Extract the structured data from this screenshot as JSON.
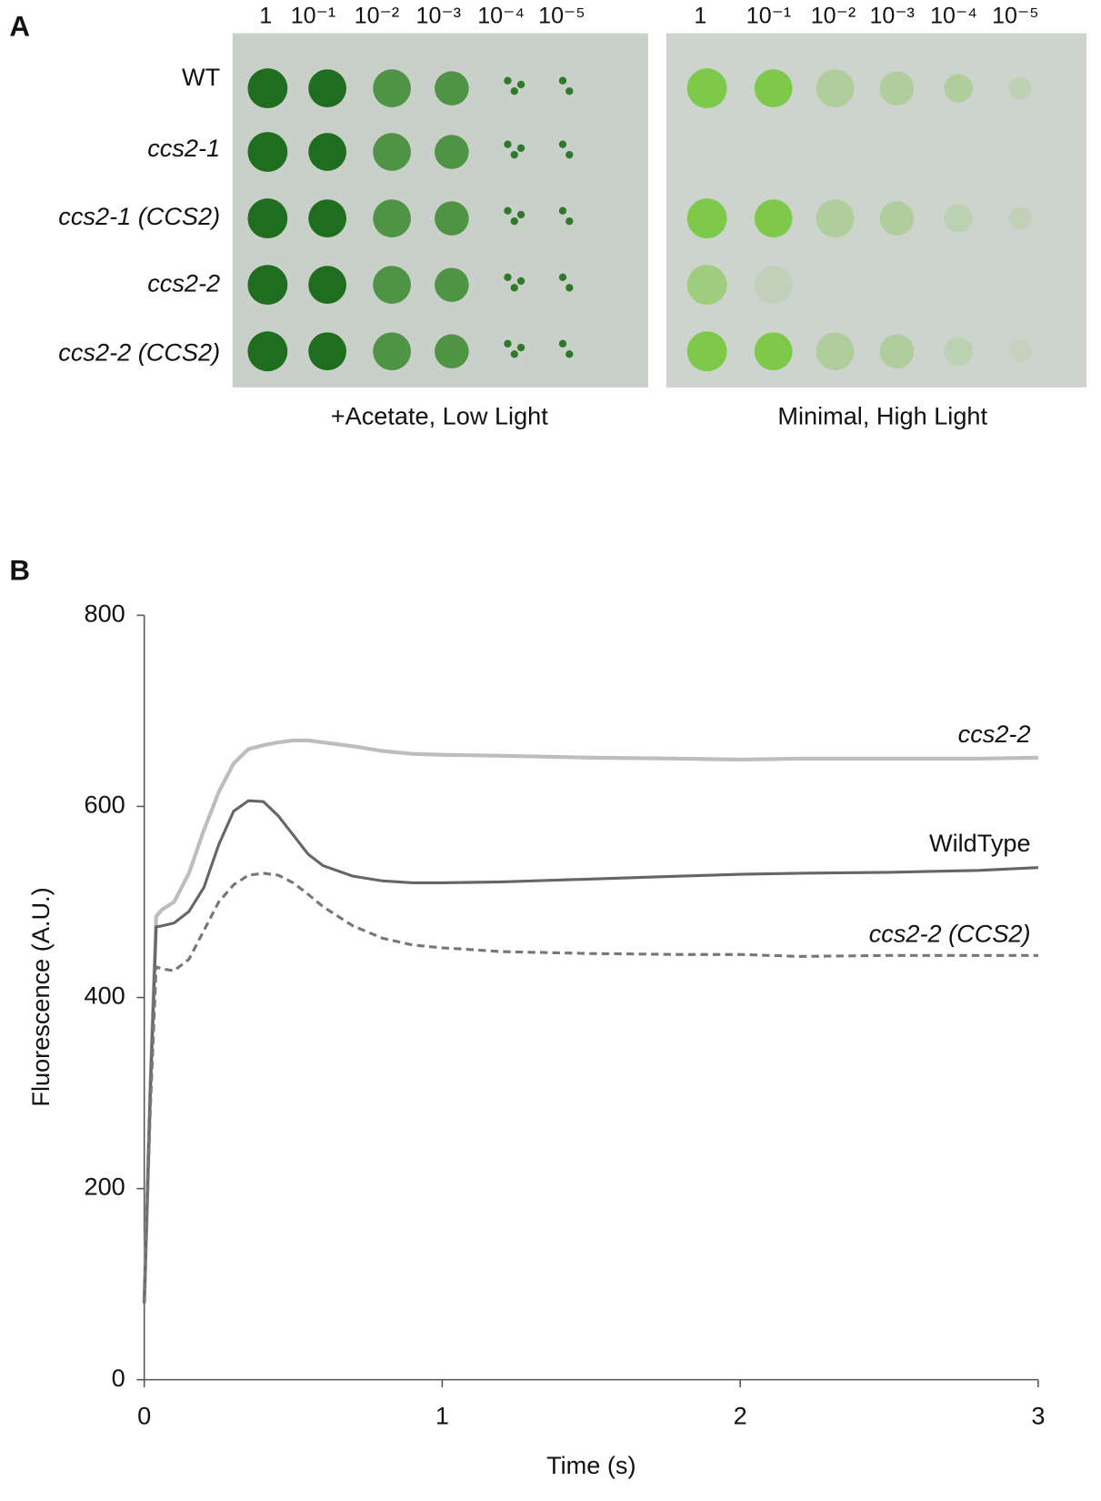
{
  "panel_a": {
    "label": "A",
    "dilutions": [
      "1",
      "10⁻¹",
      "10⁻²",
      "10⁻³",
      "10⁻⁴",
      "10⁻⁵"
    ],
    "strains": [
      "WT",
      "ccs2-1",
      "ccs2-1 (CCS2)",
      "ccs2-2",
      "ccs2-2 (CCS2)"
    ],
    "conditions": [
      "+Acetate, Low Light",
      "Minimal, High Light"
    ]
  },
  "panel_b": {
    "label": "B"
  },
  "chart_data": {
    "type": "line",
    "xlabel": "Time (s)",
    "ylabel": "Fluorescence (A.U.)",
    "x": [
      0,
      0.02,
      0.04,
      0.06,
      0.1,
      0.15,
      0.2,
      0.25,
      0.3,
      0.35,
      0.4,
      0.45,
      0.5,
      0.55,
      0.6,
      0.7,
      0.8,
      0.9,
      1.0,
      1.2,
      1.5,
      1.8,
      2.0,
      2.2,
      2.5,
      2.8,
      3.0
    ],
    "series": [
      {
        "name": "ccs2-2",
        "color": "#bdbdbd",
        "linestyle": "solid",
        "values": [
          80,
          300,
          485,
          492,
          500,
          530,
          575,
          615,
          645,
          660,
          664,
          667,
          669,
          669,
          667,
          663,
          658,
          655,
          654,
          653,
          651,
          650,
          649,
          650,
          650,
          650,
          651
        ]
      },
      {
        "name": "WildType",
        "color": "#666666",
        "linestyle": "solid",
        "values": [
          80,
          300,
          474,
          475,
          478,
          490,
          515,
          560,
          595,
          606,
          605,
          590,
          570,
          550,
          538,
          527,
          522,
          520,
          520,
          521,
          524,
          527,
          529,
          530,
          531,
          533,
          536
        ]
      },
      {
        "name": "ccs2-2 (CCS2)",
        "color": "#777777",
        "linestyle": "dashed",
        "values": [
          80,
          280,
          432,
          430,
          428,
          440,
          470,
          500,
          518,
          528,
          530,
          528,
          520,
          508,
          495,
          475,
          462,
          455,
          452,
          448,
          446,
          445,
          445,
          443,
          444,
          444,
          444
        ]
      }
    ],
    "xlim": [
      0,
      3
    ],
    "xticks": [
      0,
      1,
      2,
      3
    ],
    "ylim": [
      0,
      800
    ],
    "yticks": [
      0,
      200,
      400,
      600,
      800
    ]
  }
}
